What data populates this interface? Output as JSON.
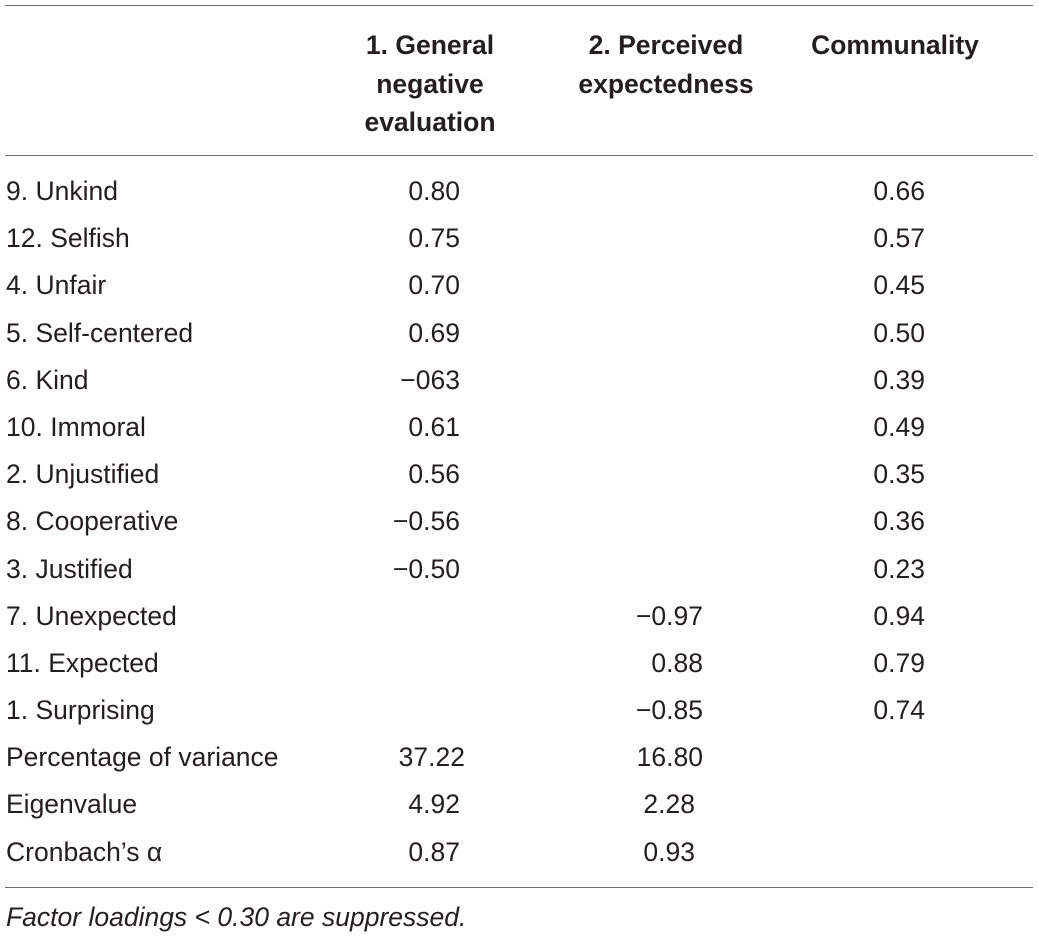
{
  "table": {
    "headers": {
      "factor1": "1. General\nnegative\nevaluation",
      "factor2": "2. Perceived\nexpectedness",
      "communality": "Communality"
    },
    "rows": [
      {
        "label": "9. Unkind",
        "factor1": "0.80",
        "factor2": "",
        "communality": "0.66"
      },
      {
        "label": "12. Selfish",
        "factor1": "0.75",
        "factor2": "",
        "communality": "0.57"
      },
      {
        "label": "4. Unfair",
        "factor1": "0.70",
        "factor2": "",
        "communality": "0.45"
      },
      {
        "label": "5. Self-centered",
        "factor1": "0.69",
        "factor2": "",
        "communality": "0.50"
      },
      {
        "label": "6. Kind",
        "factor1": "−063",
        "factor2": "",
        "communality": "0.39"
      },
      {
        "label": "10. Immoral",
        "factor1": "0.61",
        "factor2": "",
        "communality": "0.49"
      },
      {
        "label": "2. Unjustified",
        "factor1": "0.56",
        "factor2": "",
        "communality": "0.35"
      },
      {
        "label": "8. Cooperative",
        "factor1": "−0.56",
        "factor2": "",
        "communality": "0.36"
      },
      {
        "label": "3. Justified",
        "factor1": "−0.50",
        "factor2": "",
        "communality": "0.23"
      },
      {
        "label": "7. Unexpected",
        "factor1": "",
        "factor2": "−0.97",
        "communality": "0.94"
      },
      {
        "label": "11. Expected",
        "factor1": "",
        "factor2": "0.88",
        "communality": "0.79"
      },
      {
        "label": "1. Surprising",
        "factor1": "",
        "factor2": "−0.85",
        "communality": "0.74"
      }
    ],
    "summary": [
      {
        "label": "Percentage of variance",
        "factor1": "37.22",
        "factor2": "16.80",
        "communality": ""
      },
      {
        "label": "Eigenvalue",
        "factor1": "4.92",
        "factor2": "2.28",
        "communality": ""
      },
      {
        "label": "Cronbach’s α",
        "factor1": "0.87",
        "factor2": "0.93",
        "communality": ""
      }
    ],
    "footnote": "Factor loadings < 0.30 are suppressed."
  }
}
